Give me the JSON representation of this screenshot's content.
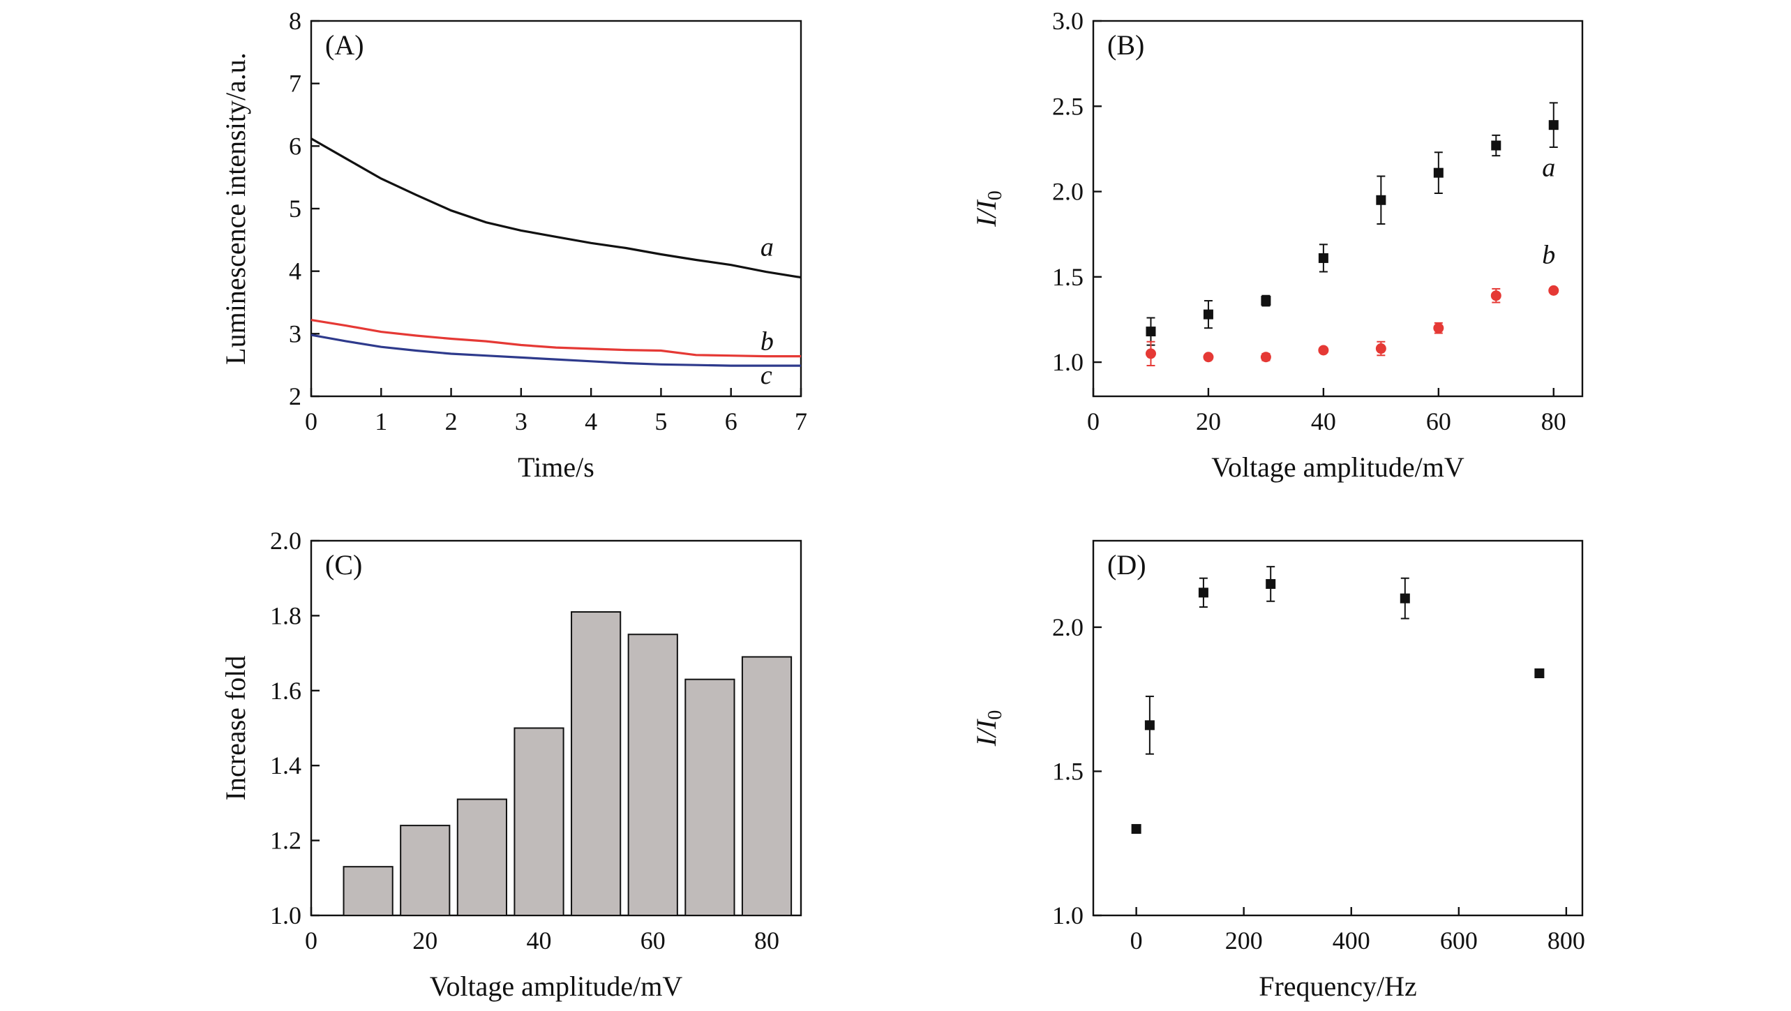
{
  "chart_data": [
    {
      "id": "A",
      "type": "line",
      "panel_label": "(A)",
      "xlabel": "Time/s",
      "ylabel": "Luminescence intensity/a.u.",
      "xlim": [
        0,
        7
      ],
      "ylim": [
        2,
        8
      ],
      "xticks": [
        0,
        1,
        2,
        3,
        4,
        5,
        6,
        7
      ],
      "yticks": [
        2,
        3,
        4,
        5,
        6,
        7,
        8
      ],
      "series": [
        {
          "name": "a",
          "color": "#111111",
          "x": [
            0,
            0.5,
            1,
            1.5,
            2,
            2.5,
            3,
            3.5,
            4,
            4.5,
            5,
            5.5,
            6,
            6.5,
            7
          ],
          "y": [
            6.12,
            5.8,
            5.48,
            5.22,
            4.97,
            4.78,
            4.65,
            4.55,
            4.45,
            4.37,
            4.27,
            4.18,
            4.1,
            3.99,
            3.9
          ]
        },
        {
          "name": "b",
          "color": "#e53935",
          "x": [
            0,
            0.5,
            1,
            1.5,
            2,
            2.5,
            3,
            3.5,
            4,
            4.5,
            5,
            5.5,
            6,
            6.5,
            7
          ],
          "y": [
            3.22,
            3.13,
            3.03,
            2.97,
            2.92,
            2.88,
            2.82,
            2.78,
            2.76,
            2.74,
            2.73,
            2.66,
            2.65,
            2.64,
            2.64
          ]
        },
        {
          "name": "c",
          "color": "#2e3a8c",
          "x": [
            0,
            0.5,
            1,
            1.5,
            2,
            2.5,
            3,
            3.5,
            4,
            4.5,
            5,
            5.5,
            6,
            6.5,
            7
          ],
          "y": [
            2.98,
            2.88,
            2.79,
            2.73,
            2.68,
            2.65,
            2.62,
            2.59,
            2.56,
            2.53,
            2.51,
            2.5,
            2.49,
            2.49,
            2.49
          ]
        }
      ]
    },
    {
      "id": "B",
      "type": "scatter",
      "panel_label": "(B)",
      "xlabel": "Voltage amplitude/mV",
      "ylabel_main": "I/I",
      "ylabel_sub": "0",
      "xlim": [
        0,
        85
      ],
      "ylim": [
        0.8,
        3.0
      ],
      "xticks": [
        0,
        20,
        40,
        60,
        80
      ],
      "yticks": [
        1.0,
        1.5,
        2.0,
        2.5,
        3.0
      ],
      "series": [
        {
          "name": "a",
          "color": "#111111",
          "marker": "square",
          "x": [
            10,
            20,
            30,
            40,
            50,
            60,
            70,
            80
          ],
          "y": [
            1.18,
            1.28,
            1.36,
            1.61,
            1.95,
            2.11,
            2.27,
            2.39
          ],
          "err": [
            0.08,
            0.08,
            0.03,
            0.08,
            0.14,
            0.12,
            0.06,
            0.13
          ]
        },
        {
          "name": "b",
          "color": "#e53935",
          "marker": "circle",
          "x": [
            10,
            20,
            30,
            40,
            50,
            60,
            70,
            80
          ],
          "y": [
            1.05,
            1.03,
            1.03,
            1.07,
            1.08,
            1.2,
            1.39,
            1.42
          ],
          "err": [
            0.07,
            0.01,
            0.02,
            0.01,
            0.04,
            0.03,
            0.04,
            0.01
          ]
        }
      ]
    },
    {
      "id": "C",
      "type": "bar",
      "panel_label": "(C)",
      "xlabel": "Voltage amplitude/mV",
      "ylabel": "Increase fold",
      "xlim": [
        0,
        86
      ],
      "ylim": [
        1.0,
        2.0
      ],
      "xticks": [
        0,
        20,
        40,
        60,
        80
      ],
      "yticks": [
        1.0,
        1.2,
        1.4,
        1.6,
        1.8,
        2.0
      ],
      "bar_color": "#c0bbba",
      "x": [
        10,
        20,
        30,
        40,
        50,
        60,
        70,
        80
      ],
      "values": [
        1.13,
        1.24,
        1.31,
        1.5,
        1.81,
        1.75,
        1.63,
        1.69
      ]
    },
    {
      "id": "D",
      "type": "scatter",
      "panel_label": "(D)",
      "xlabel": "Frequency/Hz",
      "ylabel_main": "I/I",
      "ylabel_sub": "0",
      "xlim": [
        -80,
        830
      ],
      "ylim": [
        1.0,
        2.3
      ],
      "xticks": [
        0,
        200,
        400,
        600,
        800
      ],
      "yticks": [
        1.0,
        1.5,
        2.0
      ],
      "series": [
        {
          "name": "",
          "color": "#111111",
          "marker": "square",
          "x": [
            0,
            25,
            125,
            250,
            500,
            750
          ],
          "y": [
            1.3,
            1.66,
            2.12,
            2.15,
            2.1,
            1.84
          ],
          "err": [
            0,
            0.1,
            0.05,
            0.06,
            0.07,
            0
          ]
        }
      ]
    }
  ]
}
